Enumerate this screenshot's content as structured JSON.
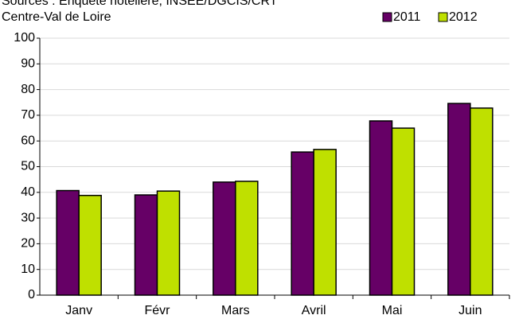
{
  "chart_data": {
    "type": "bar",
    "source": "Sources : Enquête hôtelière, INSEE/DGCIS/CRT",
    "title": "Centre-Val de Loire",
    "categories": [
      "Janv",
      "Févr",
      "Mars",
      "Avril",
      "Mai",
      "Juin"
    ],
    "series": [
      {
        "name": "2011",
        "color": "#660066",
        "values": [
          40.7,
          39,
          44,
          55.7,
          67.8,
          74.6
        ]
      },
      {
        "name": "2012",
        "color": "#bfe000",
        "values": [
          38.8,
          40.5,
          44.3,
          56.7,
          65,
          72.8
        ]
      }
    ],
    "ylim": [
      0,
      100
    ],
    "yticks": [
      0,
      10,
      20,
      30,
      40,
      50,
      60,
      70,
      80,
      90,
      100
    ],
    "grid": true,
    "legend": "top-right"
  }
}
